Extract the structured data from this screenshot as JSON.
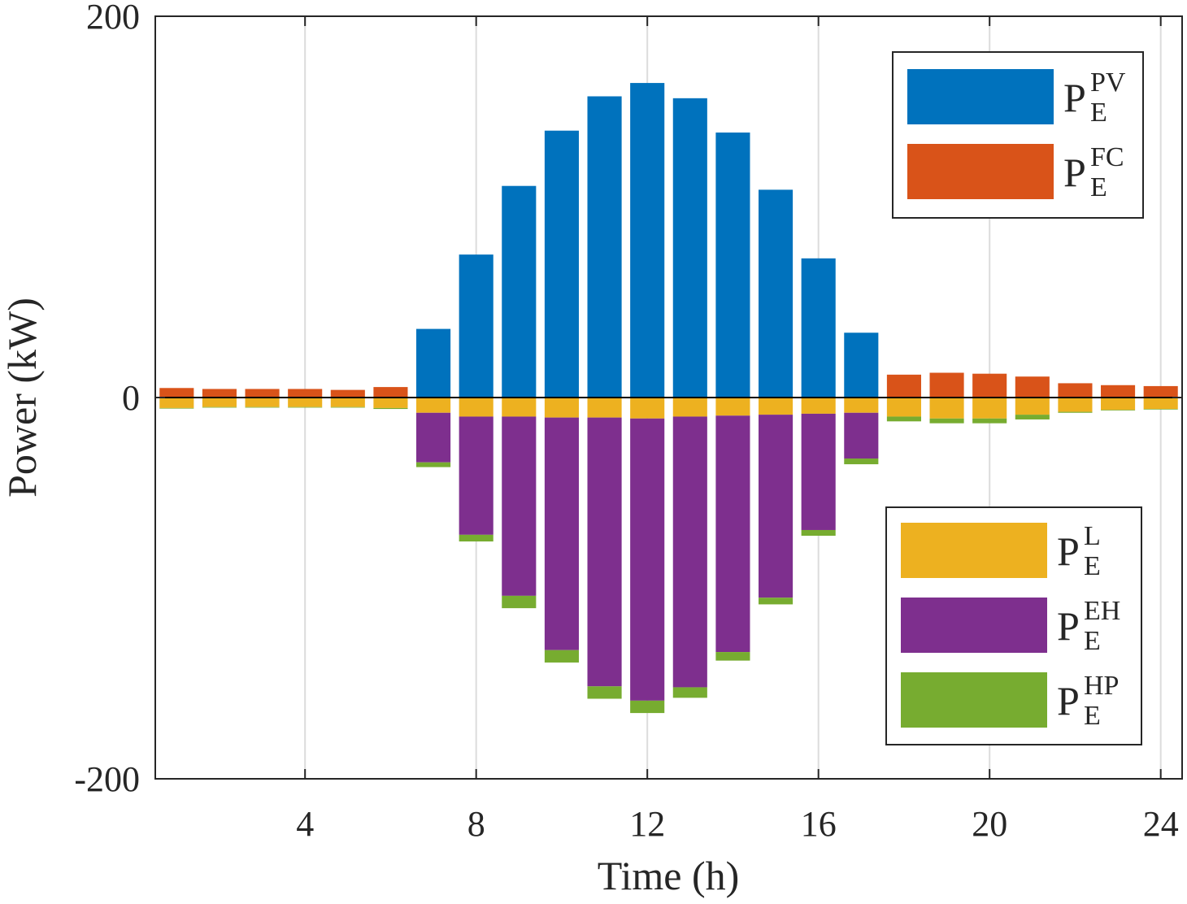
{
  "chart_data": {
    "type": "bar",
    "stacked": true,
    "xlabel": "Time (h)",
    "ylabel": "Power (kW)",
    "xlim": [
      0.5,
      24.5
    ],
    "ylim": [
      -200,
      200
    ],
    "xticks": [
      4,
      8,
      12,
      16,
      20,
      24
    ],
    "yticks": [
      -200,
      0,
      200
    ],
    "ytick_labels": [
      "-200",
      "0",
      "200"
    ],
    "grid": "vertical",
    "x": [
      1,
      2,
      3,
      4,
      5,
      6,
      7,
      8,
      9,
      10,
      11,
      12,
      13,
      14,
      15,
      16,
      17,
      18,
      19,
      20,
      21,
      22,
      23,
      24
    ],
    "series": [
      {
        "key": "pv",
        "name": "P",
        "sub": "E",
        "sup": "PV",
        "color": "#0072BD",
        "values": [
          0,
          0,
          0,
          0,
          0,
          0,
          36,
          75,
          111,
          140,
          158,
          165,
          157,
          139,
          109,
          73,
          34,
          0,
          0,
          0,
          0,
          0,
          0,
          0
        ]
      },
      {
        "key": "fc",
        "name": "P",
        "sub": "E",
        "sup": "FC",
        "color": "#D95319",
        "values": [
          5,
          4.5,
          4.5,
          4.5,
          4,
          5.5,
          0,
          0,
          0,
          0,
          0,
          0,
          0,
          0,
          0,
          0,
          0,
          12,
          13,
          12.5,
          11,
          7.5,
          6.5,
          6
        ]
      },
      {
        "key": "load",
        "name": "P",
        "sub": "E",
        "sup": "L",
        "color": "#EDB120",
        "values": [
          -5.5,
          -5,
          -5,
          -5,
          -5,
          -5.5,
          -8,
          -10,
          -10,
          -10.5,
          -10.5,
          -11,
          -10,
          -9.5,
          -9,
          -8.5,
          -8,
          -10,
          -11,
          -11,
          -9,
          -7.5,
          -6.5,
          -6
        ]
      },
      {
        "key": "eh",
        "name": "P",
        "sub": "E",
        "sup": "EH",
        "color": "#7E2F8E",
        "values": [
          0,
          0,
          0,
          0,
          0,
          0,
          -26,
          -62,
          -94,
          -122,
          -141,
          -148,
          -142,
          -124,
          -96,
          -61,
          -24,
          0,
          0,
          0,
          0,
          0,
          0,
          0
        ]
      },
      {
        "key": "hp",
        "name": "P",
        "sub": "E",
        "sup": "HP",
        "color": "#77AC30",
        "values": [
          -0.3,
          -0.3,
          -0.3,
          -0.3,
          -0.3,
          -0.5,
          -2.5,
          -3.5,
          -6.5,
          -6.5,
          -6.5,
          -6.5,
          -5.5,
          -4.5,
          -3.5,
          -3,
          -3,
          -2.5,
          -2.5,
          -2.5,
          -2.5,
          -0.5,
          -0.3,
          -0.3
        ]
      }
    ],
    "legends": [
      {
        "position": "top-right",
        "series": [
          "pv",
          "fc"
        ]
      },
      {
        "position": "bottom-right",
        "series": [
          "load",
          "eh",
          "hp"
        ]
      }
    ]
  }
}
